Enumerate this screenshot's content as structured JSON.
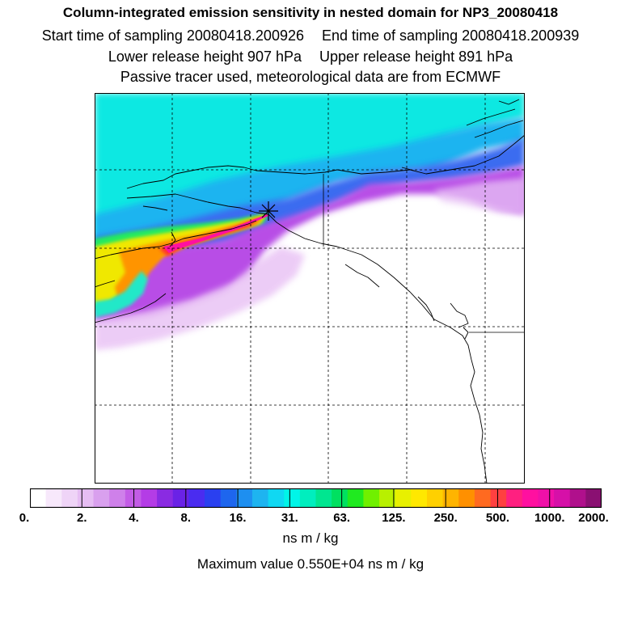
{
  "header": {
    "title": "Column-integrated emission sensitivity in nested domain for NP3_20080418",
    "start_time": "Start time of sampling 20080418.200926",
    "end_time": "End time of sampling 20080418.200939",
    "lower_release": "Lower release height  907 hPa",
    "upper_release": "Upper release height  891 hPa",
    "tracer_note": "Passive tracer used, meteorological data are from ECMWF"
  },
  "map": {
    "release_marker": "release-location-asterisk",
    "colors": {
      "background": "#ffffff",
      "coastline": "#000000",
      "gridline": "#000000"
    }
  },
  "colorbar": {
    "colors": [
      "#ffffff",
      "#f7e8fb",
      "#efd4f7",
      "#e6bdf3",
      "#d9a0ee",
      "#cf80ea",
      "#c35ce6",
      "#b43ce6",
      "#8a2be2",
      "#6a22e6",
      "#4a2cf0",
      "#2a40f0",
      "#1e66ee",
      "#1e8ff0",
      "#1eb4f0",
      "#10d8f2",
      "#00f5e8",
      "#00eebe",
      "#00e690",
      "#00e060",
      "#20ea20",
      "#70f000",
      "#b8f000",
      "#e8f000",
      "#ffe800",
      "#ffd000",
      "#ffb400",
      "#ff9000",
      "#ff6a20",
      "#ff4040",
      "#ff2080",
      "#ff10a0",
      "#f010a8",
      "#d610a8",
      "#b0108c",
      "#8a1072"
    ],
    "tick_labels": [
      "0.",
      "2.",
      "4.",
      "8.",
      "16.",
      "31.",
      "63.",
      "125.",
      "250.",
      "500.",
      "1000.",
      "2000."
    ],
    "unit": "ns m / kg"
  },
  "footer": {
    "max_value": "Maximum value  0.550E+04 ns m / kg"
  }
}
